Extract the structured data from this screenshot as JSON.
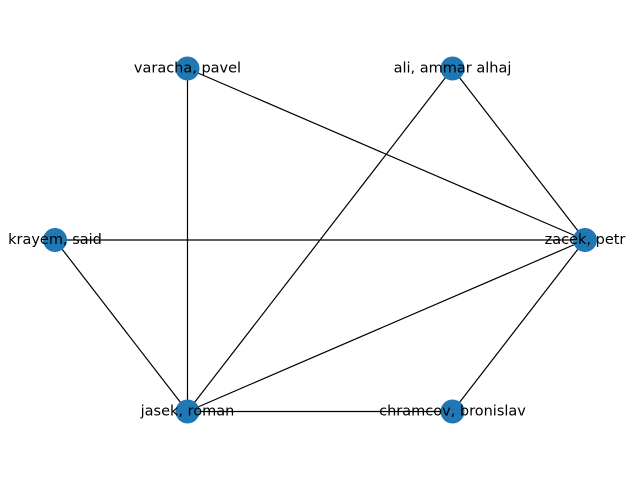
{
  "graph": {
    "type": "network",
    "layout": "circular",
    "node_color": "#1f77b4",
    "edge_color": "#000000",
    "nodes": [
      {
        "id": "zacek",
        "label": "zacek, petr"
      },
      {
        "id": "ali",
        "label": "ali, ammar alhaj"
      },
      {
        "id": "varacha",
        "label": "varacha, pavel"
      },
      {
        "id": "krayem",
        "label": "krayem, said"
      },
      {
        "id": "jasek",
        "label": "jasek, roman"
      },
      {
        "id": "chramcov",
        "label": "chramcov, bronislav"
      }
    ],
    "edges": [
      {
        "source": "varacha",
        "target": "zacek"
      },
      {
        "source": "varacha",
        "target": "jasek"
      },
      {
        "source": "ali",
        "target": "zacek"
      },
      {
        "source": "ali",
        "target": "jasek"
      },
      {
        "source": "krayem",
        "target": "zacek"
      },
      {
        "source": "krayem",
        "target": "jasek"
      },
      {
        "source": "jasek",
        "target": "zacek"
      },
      {
        "source": "jasek",
        "target": "chramcov"
      },
      {
        "source": "chramcov",
        "target": "zacek"
      }
    ]
  }
}
